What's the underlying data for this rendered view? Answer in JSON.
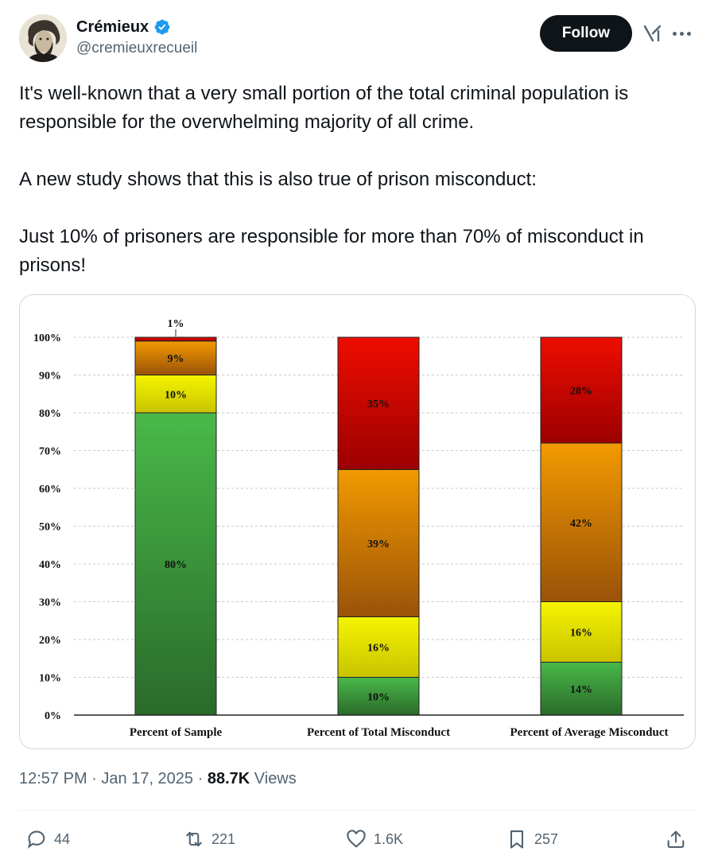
{
  "author": {
    "display_name": "Crémieux",
    "handle": "@cremieuxrecueil",
    "verified": true
  },
  "header": {
    "follow_label": "Follow"
  },
  "tweet": {
    "paragraphs": [
      "It's well-known that a very small portion of the total criminal population is responsible for the overwhelming majority of all crime.",
      "A new study shows that this is also true of prison misconduct:",
      "Just 10% of prisoners are responsible for more than 70% of misconduct in prisons!"
    ]
  },
  "meta": {
    "time": "12:57 PM",
    "date": "Jan 17, 2025",
    "views_count": "88.7K",
    "views_label": "Views"
  },
  "actions": {
    "replies": "44",
    "reposts": "221",
    "likes": "1.6K",
    "bookmarks": "257"
  },
  "colors": {
    "accent": "#1d9bf0",
    "text": "#0f1419",
    "muted": "#536471"
  },
  "chart_data": {
    "type": "bar",
    "stacked": true,
    "categories": [
      "Percent of Sample",
      "Percent of Total Misconduct",
      "Percent of Average Misconduct"
    ],
    "y_ticks": [
      "0%",
      "10%",
      "20%",
      "30%",
      "40%",
      "50%",
      "60%",
      "70%",
      "80%",
      "90%",
      "100%"
    ],
    "ylim": [
      0,
      100
    ],
    "grid": true,
    "legend": "none",
    "series": [
      {
        "color_top": "#49b949",
        "color_bottom": "#2a6a2a",
        "values": [
          80,
          10,
          14
        ],
        "labels": [
          "80%",
          "10%",
          "14%"
        ]
      },
      {
        "color_top": "#f5f500",
        "color_bottom": "#c9c300",
        "values": [
          10,
          16,
          16
        ],
        "labels": [
          "10%",
          "16%",
          "16%"
        ]
      },
      {
        "color_top": "#f29a00",
        "color_bottom": "#9a5208",
        "values": [
          9,
          39,
          42
        ],
        "labels": [
          "9%",
          "39%",
          "42%"
        ]
      },
      {
        "color_top": "#ee0d00",
        "color_bottom": "#9c0000",
        "values": [
          1,
          35,
          28
        ],
        "labels": [
          "1%",
          "35%",
          "28%"
        ]
      }
    ]
  }
}
